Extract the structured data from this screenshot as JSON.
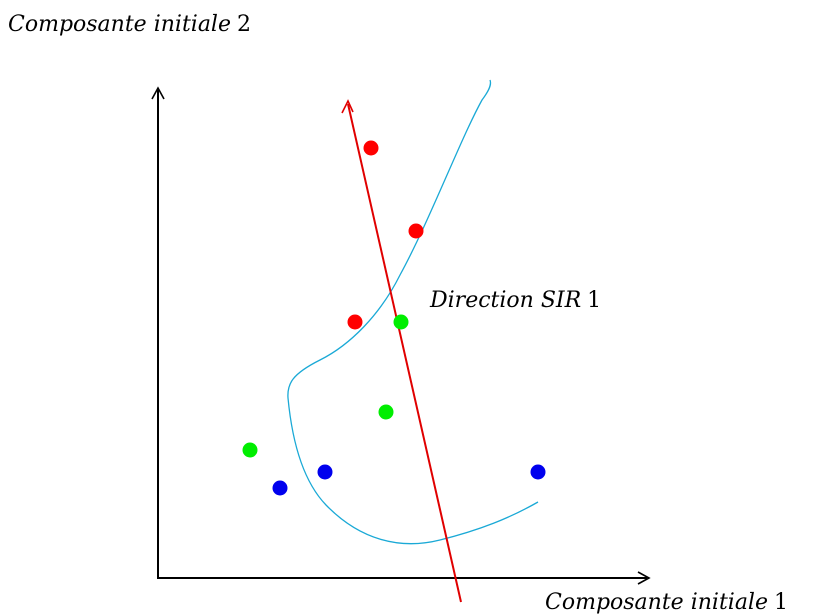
{
  "labels": {
    "y_axis_italic": "Composante initiale",
    "y_axis_num": "2",
    "x_axis_italic": "Composante initiale",
    "x_axis_num": "1",
    "direction_italic": "Direction SIR",
    "direction_num": "1"
  },
  "colors": {
    "axis": "#000000",
    "curve": "#1aa9d6",
    "direction": "#e00000",
    "red_points": "#ff0000",
    "green_points": "#00ee00",
    "blue_points": "#0000ee"
  }
}
